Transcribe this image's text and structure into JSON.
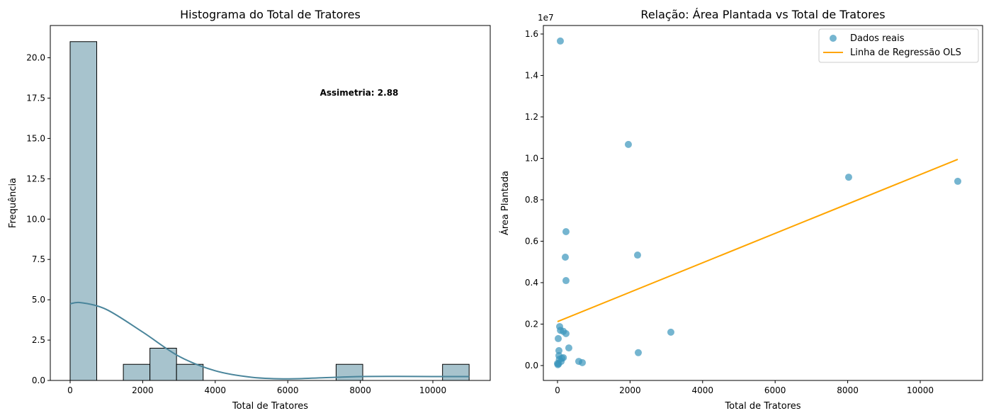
{
  "chart_data": [
    {
      "type": "bar",
      "subtype": "histogram",
      "title": "Histograma do Total de Tratores",
      "xlabel": "Total de Tratores",
      "ylabel": "Frequência",
      "xlim": [
        -547,
        11582
      ],
      "ylim": [
        0,
        22.0
      ],
      "xticks": [
        0,
        2000,
        4000,
        6000,
        8000,
        10000
      ],
      "xtick_labels": [
        "0",
        "2000",
        "4000",
        "6000",
        "8000",
        "10000"
      ],
      "yticks": [
        0,
        2.5,
        5,
        7.5,
        10,
        12.5,
        15,
        17.5,
        20
      ],
      "ytick_labels": [
        "0.0",
        "2.5",
        "5.0",
        "7.5",
        "10.0",
        "12.5",
        "15.0",
        "17.5",
        "20.0"
      ],
      "bin_edges": [
        0,
        733,
        1467,
        2200,
        2933,
        3667,
        4400,
        5133,
        5867,
        6600,
        7333,
        8067,
        8800,
        9533,
        10267,
        11000
      ],
      "counts": [
        21,
        0,
        1,
        2,
        1,
        0,
        0,
        0,
        0,
        0,
        1,
        0,
        0,
        0,
        1
      ],
      "kde": {
        "x": [
          0,
          300,
          1000,
          2000,
          3000,
          4000,
          5000,
          6000,
          7000,
          8000,
          9000,
          10000,
          11000
        ],
        "y": [
          4.75,
          4.82,
          4.4,
          3.0,
          1.5,
          0.6,
          0.2,
          0.1,
          0.17,
          0.24,
          0.25,
          0.24,
          0.24
        ]
      },
      "annotation": "Assimetria: 2.88",
      "colors": {
        "bar": "#a7c3cd",
        "edge": "#000000",
        "kde": "#4a859b"
      },
      "grid": false
    },
    {
      "type": "scatter",
      "title": "Relação: Área Plantada vs Total de Tratores",
      "xlabel": "Total de Tratores",
      "ylabel": "Área Plantada",
      "y_offset_label": "1e7",
      "xlim": [
        -390,
        11719
      ],
      "ylim": [
        -0.072,
        1.641
      ],
      "xticks": [
        0,
        2000,
        4000,
        6000,
        8000,
        10000
      ],
      "xtick_labels": [
        "0",
        "2000",
        "4000",
        "6000",
        "8000",
        "10000"
      ],
      "yticks": [
        0,
        0.2,
        0.4,
        0.6,
        0.8,
        1.0,
        1.2,
        1.4,
        1.6
      ],
      "ytick_labels": [
        "0.0",
        "0.2",
        "0.4",
        "0.6",
        "0.8",
        "1.0",
        "1.2",
        "1.4",
        "1.6"
      ],
      "series": [
        {
          "name": "Dados reais",
          "color": "#3a96bc",
          "x": [
            78,
            1953,
            8027,
            11035,
            234,
            215,
            2207,
            234,
            3125,
            234,
            59,
            80,
            160,
            312,
            20,
            2227,
            39,
            39,
            586,
            684,
            0,
            10,
            120,
            160,
            100,
            30,
            50
          ],
          "y": [
            1.566,
            1.067,
            0.909,
            0.889,
            0.646,
            0.523,
            0.533,
            0.41,
            0.161,
            0.154,
            0.188,
            0.17,
            0.165,
            0.085,
            0.13,
            0.062,
            0.072,
            0.048,
            0.02,
            0.014,
            0.01,
            0.004,
            0.035,
            0.038,
            0.02,
            0.008,
            0.03
          ]
        },
        {
          "name": "Linha de Regressão OLS",
          "color": "#ffa500",
          "x": [
            0,
            11035
          ],
          "y": [
            0.212,
            0.995
          ]
        }
      ],
      "legend": "top-right",
      "grid": false
    }
  ]
}
